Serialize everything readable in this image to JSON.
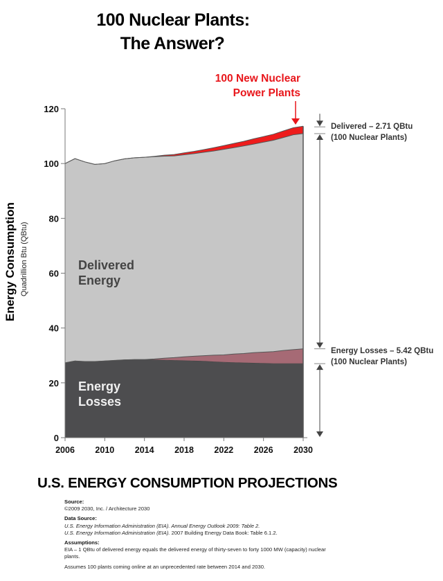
{
  "title": {
    "line1": "100 Nuclear Plants:",
    "line2": "The Answer?"
  },
  "annotations": {
    "nuclear_line1": "100 New Nuclear",
    "nuclear_line2": "Power Plants",
    "delivered_area": [
      "Delivered",
      "Energy"
    ],
    "losses_area": [
      "Energy",
      "Losses"
    ],
    "delivered_dim_line1": "Delivered – 2.71 QBtu",
    "delivered_dim_line2": "(100 Nuclear Plants)",
    "losses_dim_line1": "Energy Losses – 5.42 QBtu",
    "losses_dim_line2": "(100 Nuclear Plants)"
  },
  "chart_data": {
    "type": "area",
    "title": "U.S. ENERGY CONSUMPTION PROJECTIONS",
    "ylabel": "Energy Consumption",
    "ylabel_sub": "Quadrillion Btu (QBtu)",
    "xlabel": "",
    "x": [
      2006,
      2007,
      2008,
      2009,
      2010,
      2011,
      2012,
      2013,
      2014,
      2015,
      2016,
      2017,
      2018,
      2019,
      2020,
      2021,
      2022,
      2023,
      2024,
      2025,
      2026,
      2027,
      2028,
      2029,
      2030
    ],
    "xticks": [
      2006,
      2010,
      2014,
      2018,
      2022,
      2026,
      2030
    ],
    "yticks": [
      0,
      20,
      40,
      60,
      80,
      100,
      120
    ],
    "xlim": [
      2006,
      2030
    ],
    "ylim": [
      0,
      120
    ],
    "grid": false,
    "legend": "none",
    "series": [
      {
        "name": "Energy Losses",
        "color": "#4d4d4f",
        "values": [
          27.3,
          28.0,
          27.8,
          27.8,
          28.0,
          28.2,
          28.4,
          28.5,
          28.5,
          28.4,
          28.3,
          28.2,
          28.1,
          28.0,
          27.9,
          27.7,
          27.5,
          27.4,
          27.3,
          27.2,
          27.1,
          27.0,
          27.0,
          27.0,
          27.0
        ]
      },
      {
        "name": "Energy Losses – 100 Nuclear Plants",
        "color": "#a66a75",
        "values": [
          0,
          0,
          0,
          0,
          0,
          0,
          0,
          0,
          0,
          0.3,
          0.7,
          1.0,
          1.4,
          1.7,
          2.0,
          2.4,
          2.7,
          3.1,
          3.4,
          3.8,
          4.1,
          4.4,
          4.8,
          5.1,
          5.42
        ]
      },
      {
        "name": "Delivered Energy",
        "color": "#c6c6c6",
        "values": [
          72.7,
          73.8,
          72.8,
          71.9,
          72.0,
          72.8,
          73.3,
          73.6,
          73.8,
          73.8,
          73.7,
          73.6,
          73.7,
          73.9,
          74.2,
          74.5,
          75.0,
          75.3,
          75.7,
          76.1,
          76.6,
          77.1,
          77.7,
          78.4,
          78.5
        ]
      },
      {
        "name": "Delivered – 100 New Nuclear Power Plants",
        "color": "#ee1c1c",
        "values": [
          0,
          0,
          0,
          0,
          0,
          0,
          0,
          0,
          0,
          0.15,
          0.35,
          0.5,
          0.7,
          0.85,
          1.0,
          1.2,
          1.35,
          1.55,
          1.7,
          1.9,
          2.05,
          2.2,
          2.4,
          2.55,
          2.71
        ]
      }
    ],
    "dimension_annotations": [
      {
        "label": "Delivered – 2.71 QBtu (100 Nuclear Plants)",
        "value": 2.71
      },
      {
        "label": "Energy Losses – 5.42 QBtu (100 Nuclear Plants)",
        "value": 5.42
      }
    ]
  },
  "notes": {
    "source_heading": "Source:",
    "source_text": "©2009 2030, Inc. / Architecture 2030",
    "data_source_heading": "Data Source:",
    "data_source_1": "U.S. Energy Information Administration (EIA). Annual Energy Outlook 2009: Table 2.",
    "data_source_2_italic": "U.S. Energy Information Administration (EIA).",
    "data_source_2_rest": " 2007 Building Energy Data Book: Table 6.1.2.",
    "assumptions_heading": "Assumptions:",
    "assumption_1": "EIA – 1 QBtu of delivered energy equals the delivered energy of thirty-seven to forty 1000 MW (capacity) nuclear plants.",
    "assumption_2": "Assumes 100 plants coming online at an unprecedented rate between 2014 and 2030."
  }
}
